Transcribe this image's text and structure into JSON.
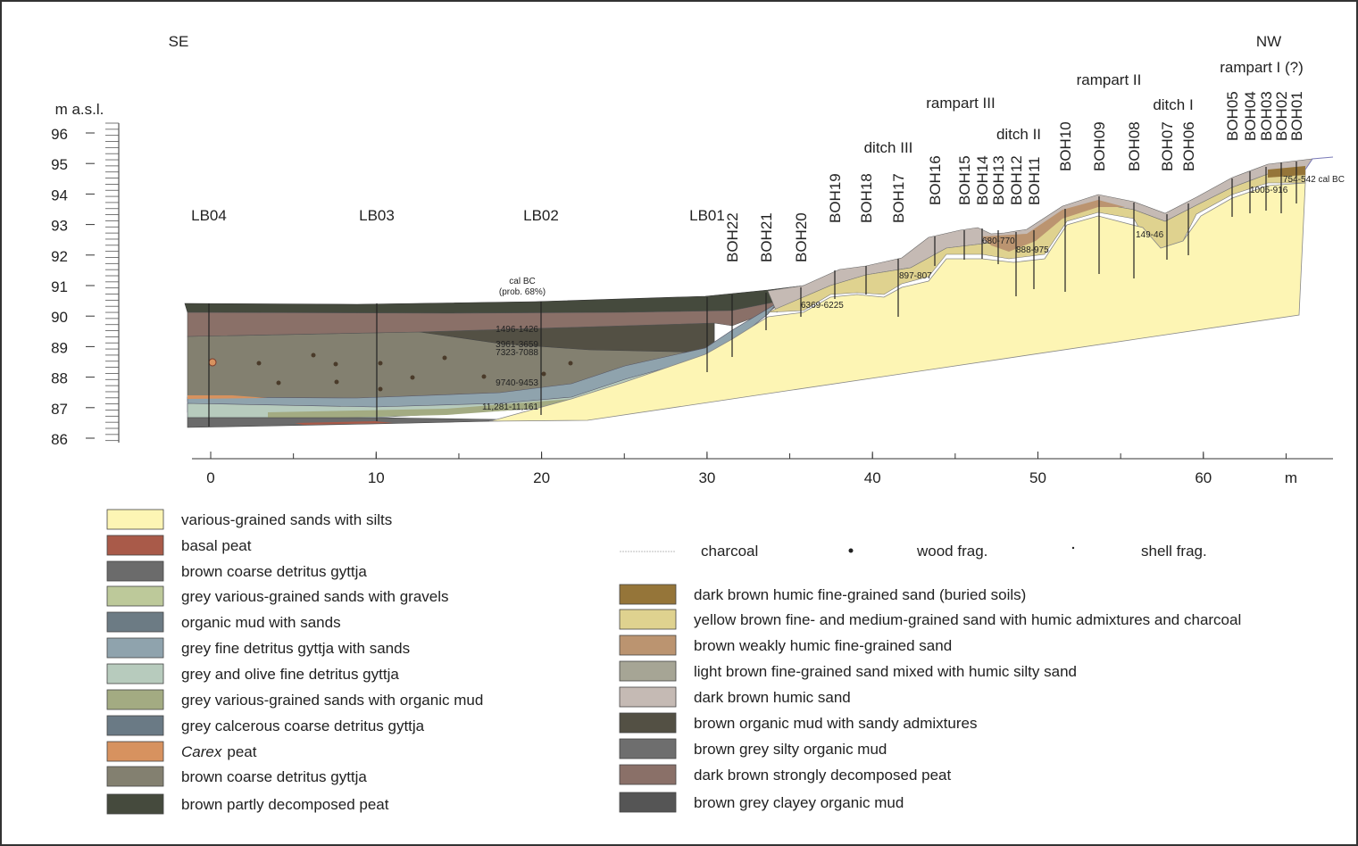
{
  "orientation": {
    "left": "SE",
    "right": "NW"
  },
  "y_axis": {
    "label": "m a.s.l.",
    "ticks": [
      96,
      95,
      94,
      93,
      92,
      91,
      90,
      89,
      88,
      87,
      86
    ]
  },
  "x_axis": {
    "unit": "m",
    "ticks": [
      0,
      10,
      20,
      30,
      40,
      50,
      60
    ]
  },
  "features": [
    "ditch III",
    "rampart III",
    "ditch II",
    "rampart II",
    "ditch I",
    "rampart I (?)"
  ],
  "boreholes": [
    "LB04",
    "LB03",
    "LB02",
    "LB01",
    "BOH22",
    "BOH21",
    "BOH20",
    "BOH19",
    "BOH18",
    "BOH17",
    "BOH16",
    "BOH15",
    "BOH14",
    "BOH13",
    "BOH12",
    "BOH11",
    "BOH10",
    "BOH09",
    "BOH08",
    "BOH07",
    "BOH06",
    "BOH05",
    "BOH04",
    "BOH03",
    "BOH02",
    "BOH01"
  ],
  "dates": {
    "header": [
      "cal BC",
      "(prob. 68%)"
    ],
    "values": [
      "1496-1426",
      "3961-3659",
      "7323-7088",
      "9740-9453",
      "11,281-11,161",
      "6369-6225",
      "897-807",
      "680-770",
      "888-975",
      "149-46",
      "754-542 cal BC",
      "1005-916"
    ]
  },
  "legend_symbols": [
    "charcoal",
    "wood frag.",
    "shell frag."
  ],
  "legend_left": [
    {
      "label": "various-grained sands with silts",
      "color": "#fdf5b4"
    },
    {
      "label": "basal peat",
      "color": "#a95a49"
    },
    {
      "label": "brown coarse detritus gyttja",
      "color": "#6b6b6b"
    },
    {
      "label": "grey various-grained sands with gravels",
      "color": "#bdc99a"
    },
    {
      "label": "organic mud with sands",
      "color": "#6c7b84"
    },
    {
      "label": "grey fine detritus gyttja with sands",
      "color": "#8fa3ad"
    },
    {
      "label": "grey and olive fine detritus gyttja",
      "color": "#b7cbbd"
    },
    {
      "label": "grey various-grained sands with organic mud",
      "color": "#a3ab82"
    },
    {
      "label": "grey calcerous coarse detritus gyttja",
      "color": "#6a7a85"
    },
    {
      "italic": "Carex",
      "label": "peat",
      "color": "#d7925f"
    },
    {
      "label": "brown coarse detritus gyttja",
      "color": "#838070"
    },
    {
      "label": "brown partly decomposed peat",
      "color": "#454a3d"
    }
  ],
  "legend_right": [
    {
      "label": "dark brown humic fine-grained sand (buried soils)",
      "color": "#957539"
    },
    {
      "label": "yellow brown fine- and medium-grained sand with humic admixtures and charcoal",
      "color": "#dfd28f"
    },
    {
      "label": "brown weakly humic fine-grained sand",
      "color": "#bb9470"
    },
    {
      "label": "light brown fine-grained sand mixed with humic silty sand",
      "color": "#a6a595"
    },
    {
      "label": "dark brown humic sand",
      "color": "#c5bab4"
    },
    {
      "label": "brown organic mud with sandy admixtures",
      "color": "#535044"
    },
    {
      "label": "brown grey silty organic mud",
      "color": "#6e6e6e"
    },
    {
      "label": "dark brown strongly decomposed peat",
      "color": "#8a7068"
    },
    {
      "label": "brown grey clayey organic mud",
      "color": "#555555"
    }
  ]
}
